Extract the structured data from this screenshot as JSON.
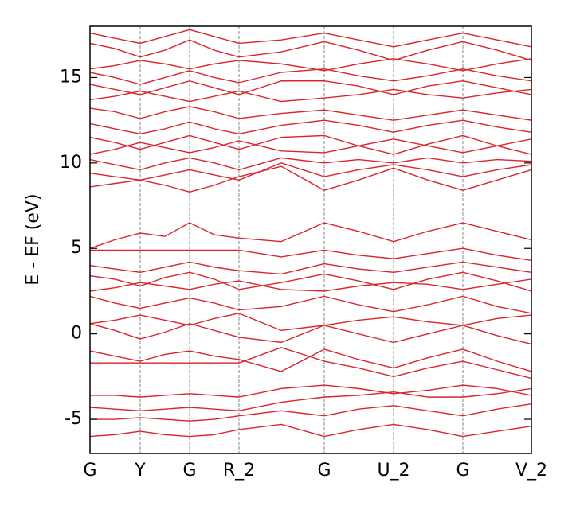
{
  "chart_data": {
    "type": "line",
    "y_label": "E - EF (eV)",
    "color": "#d9262e",
    "x": [
      0,
      31,
      63,
      94,
      125,
      156,
      187,
      240,
      294,
      337,
      381,
      424,
      468,
      511,
      554
    ],
    "xlim": [
      0,
      554
    ],
    "xticks": [
      {
        "value": 0,
        "label": "G"
      },
      {
        "value": 63,
        "label": "Y"
      },
      {
        "value": 125,
        "label": "G"
      },
      {
        "value": 187,
        "label": "R_2"
      },
      {
        "value": 294,
        "label": "G"
      },
      {
        "value": 381,
        "label": "U_2"
      },
      {
        "value": 468,
        "label": "G"
      },
      {
        "value": 554,
        "label": "V_2"
      }
    ],
    "ylim": [
      -7,
      18
    ],
    "yticks": [
      -5,
      0,
      5,
      10,
      15
    ],
    "vgrid": true,
    "series": [
      {
        "values": [
          -6.0,
          -5.9,
          -5.7,
          -5.9,
          -6.0,
          -5.9,
          -5.6,
          -5.3,
          -6.0,
          -5.6,
          -5.3,
          -5.6,
          -6.0,
          -5.7,
          -5.4
        ]
      },
      {
        "values": [
          -5.0,
          -5.0,
          -4.9,
          -5.0,
          -5.1,
          -5.0,
          -4.8,
          -4.5,
          -4.8,
          -4.4,
          -4.2,
          -4.5,
          -4.8,
          -4.4,
          -4.1
        ]
      },
      {
        "values": [
          -4.3,
          -4.4,
          -4.5,
          -4.4,
          -4.3,
          -4.4,
          -4.5,
          -4.0,
          -3.7,
          -3.6,
          -3.4,
          -3.7,
          -3.7,
          -3.5,
          -3.2
        ]
      },
      {
        "values": [
          -3.6,
          -3.6,
          -3.7,
          -3.6,
          -3.5,
          -3.6,
          -3.7,
          -3.2,
          -3.0,
          -3.2,
          -3.5,
          -3.3,
          -3.0,
          -3.2,
          -3.6
        ]
      },
      {
        "values": [
          -1.7,
          -1.7,
          -1.7,
          -1.7,
          -1.7,
          -1.7,
          -1.7,
          -0.8,
          -1.6,
          -2.0,
          -2.5,
          -2.0,
          -1.6,
          -2.1,
          -2.6
        ]
      },
      {
        "values": [
          -1.0,
          -1.3,
          -1.6,
          -1.2,
          -1.0,
          -1.3,
          -1.5,
          -2.2,
          -0.9,
          -1.5,
          -2.0,
          -1.4,
          -0.9,
          -1.6,
          -2.2
        ]
      },
      {
        "values": [
          0.6,
          0.2,
          -0.3,
          0.1,
          0.6,
          0.2,
          -0.2,
          -0.5,
          0.5,
          0.0,
          -0.5,
          0.0,
          0.5,
          -0.1,
          -0.6
        ]
      },
      {
        "values": [
          0.6,
          0.8,
          1.1,
          0.8,
          0.5,
          0.9,
          1.2,
          0.2,
          0.5,
          0.8,
          1.0,
          0.7,
          0.5,
          0.9,
          1.1
        ]
      },
      {
        "values": [
          2.2,
          1.8,
          1.5,
          1.8,
          2.1,
          1.8,
          1.4,
          1.6,
          2.2,
          1.7,
          1.3,
          1.7,
          2.2,
          1.6,
          1.2
        ]
      },
      {
        "values": [
          2.5,
          2.7,
          3.0,
          2.8,
          2.6,
          2.9,
          3.1,
          2.6,
          2.5,
          2.8,
          3.0,
          2.9,
          2.6,
          2.9,
          3.2
        ]
      },
      {
        "values": [
          3.4,
          3.2,
          2.8,
          3.3,
          3.6,
          3.2,
          2.6,
          3.0,
          3.5,
          3.1,
          2.6,
          3.2,
          3.6,
          3.1,
          2.5
        ]
      },
      {
        "values": [
          4.0,
          3.8,
          3.6,
          3.9,
          4.2,
          3.9,
          3.7,
          3.5,
          4.1,
          3.8,
          3.6,
          3.9,
          4.2,
          3.9,
          3.6
        ]
      },
      {
        "values": [
          4.9,
          4.9,
          4.9,
          4.9,
          4.9,
          4.9,
          4.9,
          4.5,
          4.9,
          4.6,
          4.4,
          4.7,
          5.0,
          4.6,
          4.3
        ]
      },
      {
        "values": [
          5.0,
          5.5,
          5.9,
          5.7,
          6.5,
          5.8,
          5.6,
          5.4,
          6.5,
          6.0,
          5.4,
          6.0,
          6.5,
          6.0,
          5.5
        ]
      },
      {
        "values": [
          8.6,
          8.8,
          9.0,
          8.7,
          8.3,
          8.7,
          9.2,
          9.8,
          8.4,
          9.0,
          9.7,
          9.0,
          8.4,
          9.0,
          9.6
        ]
      },
      {
        "values": [
          9.4,
          9.2,
          9.0,
          9.3,
          9.6,
          9.3,
          9.0,
          10.0,
          9.2,
          9.6,
          9.9,
          9.6,
          9.2,
          9.6,
          9.9
        ]
      },
      {
        "values": [
          10.2,
          9.9,
          9.6,
          10.0,
          10.3,
          10.0,
          9.6,
          10.3,
          10.0,
          10.2,
          10.0,
          10.3,
          10.0,
          10.2,
          10.1
        ]
      },
      {
        "values": [
          10.5,
          10.8,
          11.2,
          10.9,
          10.6,
          10.9,
          11.3,
          10.7,
          10.6,
          11.0,
          11.4,
          11.0,
          10.6,
          11.0,
          11.4
        ]
      },
      {
        "values": [
          11.5,
          11.2,
          10.8,
          11.2,
          11.6,
          11.2,
          10.8,
          11.5,
          11.6,
          11.0,
          10.5,
          11.1,
          11.6,
          11.0,
          10.5
        ]
      },
      {
        "values": [
          12.3,
          12.0,
          11.7,
          12.0,
          12.4,
          12.0,
          11.7,
          12.2,
          12.5,
          12.2,
          11.8,
          12.2,
          12.5,
          12.1,
          11.8
        ]
      },
      {
        "values": [
          13.2,
          13.0,
          12.6,
          13.0,
          13.3,
          13.0,
          12.6,
          12.9,
          13.1,
          12.8,
          12.5,
          12.8,
          13.1,
          12.8,
          12.5
        ]
      },
      {
        "values": [
          13.7,
          13.9,
          14.2,
          13.9,
          13.6,
          13.9,
          14.2,
          13.6,
          13.8,
          14.0,
          14.3,
          14.0,
          13.8,
          14.1,
          14.3
        ]
      },
      {
        "values": [
          14.6,
          14.3,
          14.0,
          14.4,
          14.8,
          14.4,
          14.0,
          14.8,
          14.8,
          14.5,
          14.0,
          14.5,
          14.8,
          14.4,
          14.0
        ]
      },
      {
        "values": [
          15.3,
          15.0,
          14.6,
          15.0,
          15.4,
          15.0,
          14.7,
          15.3,
          15.5,
          15.1,
          14.8,
          15.1,
          15.5,
          15.1,
          14.8
        ]
      },
      {
        "values": [
          15.5,
          15.7,
          16.0,
          15.8,
          15.5,
          15.8,
          16.0,
          15.8,
          15.4,
          15.8,
          16.1,
          15.8,
          15.4,
          15.8,
          16.1
        ]
      },
      {
        "values": [
          17.0,
          16.7,
          16.2,
          16.6,
          17.2,
          16.6,
          16.2,
          16.5,
          17.1,
          16.6,
          16.0,
          16.6,
          17.1,
          16.6,
          16.0
        ]
      },
      {
        "values": [
          17.6,
          17.3,
          17.0,
          17.4,
          17.8,
          17.4,
          17.0,
          17.2,
          17.6,
          17.2,
          16.8,
          17.2,
          17.6,
          17.2,
          16.8
        ]
      }
    ]
  }
}
